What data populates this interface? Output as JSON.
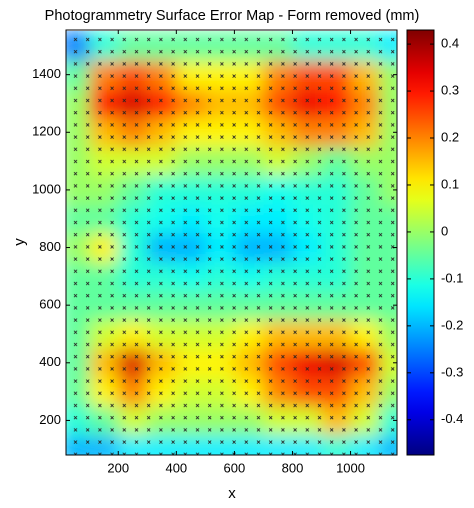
{
  "chart_data": {
    "type": "heatmap",
    "title": "Photogrammetry Surface Error Map  - Form removed (mm)",
    "xlabel": "x",
    "ylabel": "y",
    "colormap": "jet",
    "x": [
      50,
      150,
      250,
      350,
      450,
      550,
      650,
      750,
      850,
      950,
      1050,
      1150
    ],
    "y": [
      100,
      200,
      300,
      400,
      500,
      600,
      700,
      800,
      900,
      1000,
      1100,
      1200,
      1300,
      1400,
      1500
    ],
    "values": [
      [
        -0.2,
        -0.2,
        -0.15,
        -0.15,
        -0.15,
        -0.15,
        -0.15,
        -0.15,
        -0.15,
        -0.1,
        -0.15,
        -0.2
      ],
      [
        -0.1,
        -0.05,
        0.05,
        0,
        0,
        0,
        0,
        0.05,
        0.05,
        0.15,
        0.05,
        -0.1
      ],
      [
        -0.05,
        0.1,
        0.2,
        0.1,
        0.05,
        0.05,
        0.1,
        0.2,
        0.25,
        0.25,
        0.15,
        0
      ],
      [
        -0.05,
        0.15,
        0.35,
        0.15,
        0.1,
        0.1,
        0.15,
        0.25,
        0.33,
        0.35,
        0.25,
        0.05
      ],
      [
        -0.05,
        0.05,
        0.1,
        0.05,
        0.05,
        0.05,
        0.1,
        0.15,
        0.15,
        0.15,
        0.1,
        0
      ],
      [
        -0.05,
        -0.05,
        -0.05,
        -0.05,
        -0.05,
        -0.05,
        -0.05,
        -0.05,
        -0.05,
        -0.05,
        -0.05,
        -0.05
      ],
      [
        -0.05,
        -0.05,
        -0.1,
        -0.1,
        -0.12,
        -0.1,
        -0.12,
        -0.1,
        -0.1,
        -0.1,
        -0.05,
        -0.05
      ],
      [
        0,
        0.1,
        -0.1,
        -0.2,
        -0.2,
        -0.15,
        -0.2,
        -0.2,
        -0.15,
        -0.1,
        -0.05,
        -0.05
      ],
      [
        -0.05,
        -0.05,
        -0.1,
        -0.12,
        -0.15,
        -0.12,
        -0.15,
        -0.15,
        -0.12,
        -0.1,
        -0.05,
        -0.05
      ],
      [
        0,
        0,
        -0.05,
        -0.1,
        -0.1,
        -0.1,
        -0.1,
        -0.12,
        -0.1,
        -0.1,
        -0.05,
        0
      ],
      [
        0,
        0.05,
        0.05,
        0.05,
        0,
        0,
        0,
        0.05,
        0,
        -0.05,
        0,
        0
      ],
      [
        0,
        0.15,
        0.2,
        0.15,
        0.1,
        0.1,
        0.1,
        0.15,
        0.2,
        0.2,
        0.15,
        0
      ],
      [
        0,
        0.3,
        0.35,
        0.3,
        0.2,
        0.15,
        0.15,
        0.25,
        0.33,
        0.3,
        0.2,
        0
      ],
      [
        -0.05,
        0.2,
        0.25,
        0.2,
        0.1,
        0.1,
        0.1,
        0.2,
        0.25,
        0.25,
        0.15,
        0
      ],
      [
        -0.25,
        -0.1,
        -0.05,
        -0.05,
        -0.05,
        -0.05,
        -0.05,
        -0.05,
        -0.1,
        -0.1,
        -0.1,
        -0.15
      ]
    ],
    "xlim": [
      20,
      1160
    ],
    "ylim": [
      80,
      1555
    ],
    "xticks": [
      200,
      400,
      600,
      800,
      1000
    ],
    "yticks": [
      200,
      400,
      600,
      800,
      1000,
      1200,
      1400
    ],
    "clim": [
      -0.475,
      0.43
    ],
    "cticks": [
      -0.4,
      -0.3,
      -0.2,
      -0.1,
      0,
      0.1,
      0.2,
      0.3,
      0.4
    ]
  }
}
